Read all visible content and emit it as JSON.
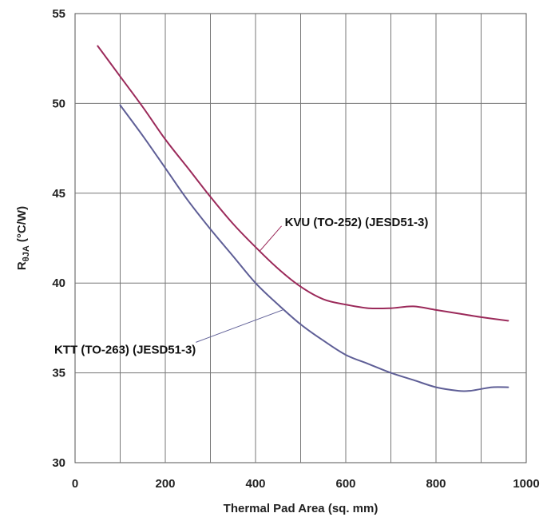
{
  "chart_data": {
    "type": "line",
    "title": "",
    "xlabel": "Thermal Pad Area (sq. mm)",
    "ylabel": {
      "main": "R",
      "sub": "θJA",
      "unit": " (°C/W)"
    },
    "xlim": [
      0,
      1000
    ],
    "ylim": [
      30,
      55
    ],
    "xticks": [
      0,
      200,
      400,
      600,
      800,
      1000
    ],
    "yticks": [
      30,
      35,
      40,
      45,
      50,
      55
    ],
    "x_grid_step": 100,
    "grid": true,
    "series": [
      {
        "name": "KVU (TO-252) (JESD51-3)",
        "color": "#9b2a5a",
        "x": [
          50,
          100,
          150,
          200,
          250,
          300,
          350,
          400,
          450,
          500,
          550,
          600,
          650,
          700,
          750,
          800,
          850,
          900,
          960
        ],
        "y": [
          53.2,
          51.5,
          49.8,
          48.0,
          46.4,
          44.8,
          43.3,
          42.0,
          40.8,
          39.8,
          39.1,
          38.8,
          38.6,
          38.6,
          38.7,
          38.5,
          38.3,
          38.1,
          37.9
        ]
      },
      {
        "name": "KTT (TO-263) (JESD51-3)",
        "color": "#5e5e96",
        "x": [
          100,
          150,
          200,
          250,
          300,
          350,
          400,
          450,
          500,
          550,
          600,
          650,
          700,
          750,
          800,
          850,
          875,
          900,
          925,
          960
        ],
        "y": [
          49.9,
          48.2,
          46.4,
          44.6,
          43.0,
          41.5,
          40.0,
          38.8,
          37.7,
          36.8,
          36.0,
          35.5,
          35.0,
          34.6,
          34.2,
          34.0,
          34.0,
          34.1,
          34.2,
          34.2
        ]
      }
    ],
    "annotations": [
      {
        "text": "KVU (TO-252) (JESD51-3)",
        "series": 0,
        "point": [
          410,
          41.8
        ],
        "label_at": [
          440,
          43.4
        ]
      },
      {
        "text": "KTT (TO-263) (JESD51-3)",
        "series": 1,
        "point": [
          460,
          38.5
        ],
        "label_at": [
          420,
          36.3
        ]
      }
    ]
  }
}
